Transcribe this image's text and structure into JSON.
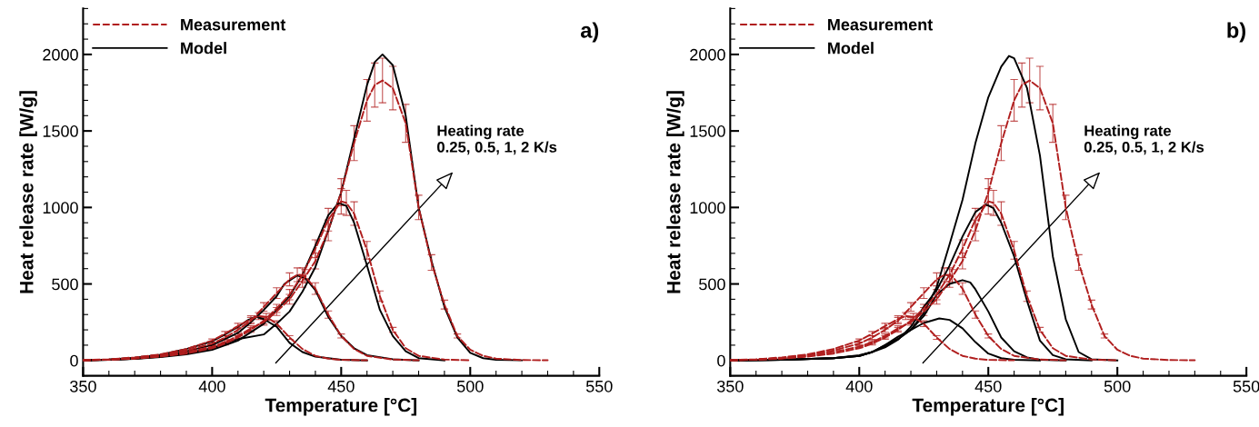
{
  "chart_data": [
    {
      "type": "line",
      "title": "a)",
      "xlabel": "Temperature [°C]",
      "ylabel": "Heat release rate [W/g]",
      "xlim": [
        350,
        550
      ],
      "xticks": [
        350,
        400,
        450,
        500,
        550
      ],
      "ylim": [
        -100,
        2300
      ],
      "yticks": [
        0,
        500,
        1000,
        1500,
        2000
      ],
      "legend": "top left",
      "grid": false,
      "marker": "none",
      "annotations": [
        "Heating rate\n0.25, 0.5, 1, 2 K/s"
      ],
      "series": [
        {
          "name": "Measurement",
          "color": "#b01e1e",
          "line_style": "dashed",
          "x": [
            350,
            360,
            370,
            380,
            390,
            400,
            405,
            410,
            415,
            418,
            421,
            425,
            430,
            435,
            440,
            445,
            450,
            460
          ],
          "values": [
            2,
            8,
            20,
            40,
            75,
            130,
            175,
            225,
            270,
            290,
            285,
            240,
            150,
            75,
            30,
            12,
            4,
            1
          ],
          "errors": [
            null,
            null,
            null,
            null,
            null,
            10,
            14,
            18,
            22,
            23,
            23,
            19,
            12,
            null,
            null,
            null,
            null,
            null
          ]
        },
        {
          "color": "#b01e1e",
          "line_style": "dashed",
          "x": [
            350,
            360,
            370,
            380,
            390,
            400,
            405,
            410,
            415,
            420,
            425,
            430,
            433,
            436,
            440,
            445,
            450,
            455,
            460,
            470,
            480
          ],
          "values": [
            2,
            6,
            15,
            35,
            65,
            110,
            150,
            200,
            260,
            350,
            440,
            530,
            560,
            550,
            470,
            300,
            160,
            75,
            30,
            6,
            1
          ],
          "errors": [
            null,
            null,
            null,
            null,
            null,
            9,
            12,
            16,
            21,
            28,
            35,
            42,
            45,
            44,
            38,
            24,
            13,
            null,
            null,
            null,
            null
          ]
        },
        {
          "color": "#b01e1e",
          "line_style": "dashed",
          "x": [
            350,
            360,
            370,
            380,
            390,
            400,
            405,
            410,
            415,
            420,
            425,
            430,
            435,
            440,
            445,
            450,
            452,
            455,
            460,
            465,
            470,
            475,
            480,
            490,
            500
          ],
          "values": [
            1,
            5,
            12,
            25,
            45,
            80,
            110,
            150,
            200,
            260,
            340,
            430,
            560,
            730,
            920,
            1040,
            1030,
            960,
            720,
            420,
            200,
            80,
            30,
            6,
            1
          ],
          "errors": [
            null,
            null,
            null,
            null,
            null,
            null,
            9,
            12,
            16,
            21,
            27,
            34,
            45,
            58,
            74,
            83,
            82,
            77,
            58,
            34,
            16,
            null,
            null,
            null,
            null
          ]
        },
        {
          "color": "#b01e1e",
          "line_style": "dashed",
          "x": [
            350,
            360,
            370,
            380,
            390,
            400,
            405,
            410,
            415,
            420,
            425,
            430,
            435,
            440,
            445,
            450,
            455,
            460,
            463,
            466,
            470,
            475,
            480,
            485,
            490,
            495,
            500,
            505,
            510,
            520,
            530
          ],
          "values": [
            1,
            5,
            15,
            30,
            55,
            90,
            120,
            160,
            210,
            250,
            320,
            400,
            520,
            650,
            850,
            1100,
            1420,
            1700,
            1800,
            1830,
            1780,
            1550,
            1000,
            640,
            365,
            160,
            70,
            30,
            12,
            3,
            1
          ],
          "errors": [
            null,
            null,
            null,
            null,
            null,
            7,
            10,
            13,
            17,
            20,
            26,
            32,
            42,
            52,
            68,
            88,
            114,
            136,
            144,
            146,
            142,
            124,
            80,
            51,
            29,
            13,
            null,
            null,
            null,
            null,
            null
          ]
        },
        {
          "name": "Model",
          "color": "#000000",
          "line_style": "solid",
          "x": [
            350,
            360,
            370,
            380,
            390,
            400,
            405,
            410,
            414,
            417,
            420,
            425,
            430,
            435,
            440,
            450,
            460
          ],
          "values": [
            1,
            6,
            18,
            38,
            75,
            125,
            170,
            220,
            265,
            285,
            270,
            220,
            115,
            55,
            25,
            5,
            0
          ]
        },
        {
          "color": "#000000",
          "line_style": "solid",
          "x": [
            350,
            360,
            370,
            380,
            390,
            400,
            410,
            415,
            420,
            425,
            428,
            433,
            436,
            440,
            445,
            450,
            455,
            460,
            470,
            480
          ],
          "values": [
            1,
            5,
            12,
            30,
            60,
            100,
            180,
            250,
            330,
            420,
            500,
            555,
            540,
            460,
            285,
            160,
            80,
            35,
            8,
            0
          ]
        },
        {
          "color": "#000000",
          "line_style": "solid",
          "x": [
            350,
            360,
            370,
            380,
            390,
            400,
            410,
            420,
            425,
            430,
            435,
            440,
            445,
            449,
            452,
            455,
            460,
            465,
            470,
            475,
            480,
            490
          ],
          "values": [
            1,
            4,
            10,
            22,
            40,
            70,
            130,
            240,
            330,
            420,
            560,
            750,
            950,
            1030,
            1010,
            900,
            620,
            330,
            160,
            60,
            15,
            1
          ]
        },
        {
          "color": "#000000",
          "line_style": "solid",
          "x": [
            350,
            360,
            370,
            380,
            390,
            400,
            410,
            420,
            425,
            430,
            435,
            440,
            445,
            450,
            455,
            460,
            463,
            466,
            470,
            475,
            480,
            485,
            490,
            495,
            500,
            505,
            510,
            520
          ],
          "values": [
            1,
            4,
            12,
            25,
            48,
            80,
            140,
            170,
            240,
            320,
            450,
            610,
            850,
            1100,
            1450,
            1800,
            1950,
            2000,
            1930,
            1600,
            1000,
            650,
            350,
            150,
            50,
            15,
            5,
            1
          ]
        }
      ]
    },
    {
      "type": "line",
      "title": "b)",
      "xlabel": "Temperature [°C]",
      "ylabel": "Heat release rate [W/g]",
      "xlim": [
        350,
        550
      ],
      "xticks": [
        350,
        400,
        450,
        500,
        550
      ],
      "ylim": [
        -100,
        2300
      ],
      "yticks": [
        0,
        500,
        1000,
        1500,
        2000
      ],
      "legend": "top left",
      "grid": false,
      "marker": "none",
      "annotations": [
        "Heating rate\n0.25, 0.5, 1, 2 K/s"
      ],
      "series": [
        {
          "name": "Measurement",
          "color": "#b01e1e",
          "line_style": "dashed",
          "x": [
            350,
            360,
            370,
            380,
            390,
            400,
            405,
            410,
            415,
            418,
            421,
            425,
            430,
            435,
            440,
            445,
            450,
            460
          ],
          "values": [
            2,
            8,
            20,
            40,
            75,
            130,
            175,
            225,
            270,
            290,
            285,
            240,
            150,
            75,
            30,
            12,
            4,
            1
          ],
          "errors": [
            null,
            null,
            null,
            null,
            null,
            10,
            14,
            18,
            22,
            23,
            23,
            19,
            12,
            null,
            null,
            null,
            null,
            null
          ]
        },
        {
          "color": "#b01e1e",
          "line_style": "dashed",
          "x": [
            350,
            360,
            370,
            380,
            390,
            400,
            405,
            410,
            415,
            420,
            425,
            430,
            433,
            436,
            440,
            445,
            450,
            455,
            460,
            470,
            480
          ],
          "values": [
            2,
            6,
            15,
            35,
            65,
            110,
            150,
            200,
            260,
            350,
            440,
            530,
            560,
            550,
            470,
            300,
            160,
            75,
            30,
            6,
            1
          ],
          "errors": [
            null,
            null,
            null,
            null,
            null,
            9,
            12,
            16,
            21,
            28,
            35,
            42,
            45,
            44,
            38,
            24,
            13,
            null,
            null,
            null,
            null
          ]
        },
        {
          "color": "#b01e1e",
          "line_style": "dashed",
          "x": [
            350,
            360,
            370,
            380,
            390,
            400,
            405,
            410,
            415,
            420,
            425,
            430,
            435,
            440,
            445,
            450,
            452,
            455,
            460,
            465,
            470,
            475,
            480,
            490,
            500
          ],
          "values": [
            1,
            5,
            12,
            25,
            45,
            80,
            110,
            150,
            200,
            260,
            340,
            430,
            560,
            730,
            920,
            1040,
            1030,
            960,
            720,
            420,
            200,
            80,
            30,
            6,
            1
          ],
          "errors": [
            null,
            null,
            null,
            null,
            null,
            null,
            9,
            12,
            16,
            21,
            27,
            34,
            45,
            58,
            74,
            83,
            82,
            77,
            58,
            34,
            16,
            null,
            null,
            null,
            null
          ]
        },
        {
          "color": "#b01e1e",
          "line_style": "dashed",
          "x": [
            350,
            360,
            370,
            380,
            390,
            400,
            405,
            410,
            415,
            420,
            425,
            430,
            435,
            440,
            445,
            450,
            455,
            460,
            463,
            466,
            470,
            475,
            480,
            485,
            490,
            495,
            500,
            505,
            510,
            520,
            530
          ],
          "values": [
            1,
            5,
            15,
            30,
            55,
            90,
            120,
            160,
            210,
            250,
            320,
            400,
            520,
            650,
            850,
            1100,
            1420,
            1700,
            1800,
            1830,
            1780,
            1550,
            1000,
            640,
            365,
            160,
            70,
            30,
            12,
            3,
            1
          ],
          "errors": [
            null,
            null,
            null,
            null,
            null,
            7,
            10,
            13,
            17,
            20,
            26,
            32,
            42,
            52,
            68,
            88,
            114,
            136,
            144,
            146,
            142,
            124,
            80,
            51,
            29,
            13,
            null,
            null,
            null,
            null,
            null
          ]
        },
        {
          "name": "Model",
          "color": "#000000",
          "line_style": "solid",
          "x": [
            350,
            370,
            390,
            400,
            405,
            410,
            415,
            420,
            425,
            431,
            435,
            440,
            445,
            450,
            455,
            460,
            470
          ],
          "values": [
            0,
            5,
            15,
            30,
            55,
            100,
            155,
            200,
            245,
            275,
            265,
            210,
            120,
            45,
            15,
            5,
            0
          ]
        },
        {
          "color": "#000000",
          "line_style": "solid",
          "x": [
            350,
            370,
            390,
            400,
            405,
            410,
            415,
            420,
            425,
            430,
            435,
            440,
            443,
            445,
            450,
            455,
            460,
            465,
            470,
            480
          ],
          "values": [
            0,
            5,
            15,
            30,
            55,
            100,
            140,
            200,
            290,
            430,
            500,
            525,
            510,
            465,
            320,
            150,
            60,
            20,
            5,
            0
          ]
        },
        {
          "color": "#000000",
          "line_style": "solid",
          "x": [
            350,
            370,
            390,
            400,
            405,
            410,
            415,
            420,
            425,
            430,
            435,
            440,
            445,
            449,
            452,
            455,
            460,
            465,
            470,
            475,
            480,
            490
          ],
          "values": [
            0,
            5,
            15,
            35,
            55,
            85,
            135,
            220,
            350,
            460,
            620,
            810,
            970,
            1020,
            995,
            900,
            680,
            390,
            130,
            35,
            8,
            0
          ]
        },
        {
          "color": "#000000",
          "line_style": "solid",
          "x": [
            350,
            370,
            390,
            400,
            405,
            410,
            415,
            420,
            425,
            430,
            435,
            440,
            445,
            450,
            455,
            458,
            460,
            465,
            470,
            475,
            480,
            485,
            490,
            500
          ],
          "values": [
            0,
            5,
            15,
            30,
            55,
            95,
            140,
            200,
            310,
            480,
            760,
            1050,
            1420,
            1720,
            1920,
            1990,
            1975,
            1780,
            1340,
            680,
            270,
            55,
            8,
            0
          ]
        }
      ]
    }
  ]
}
